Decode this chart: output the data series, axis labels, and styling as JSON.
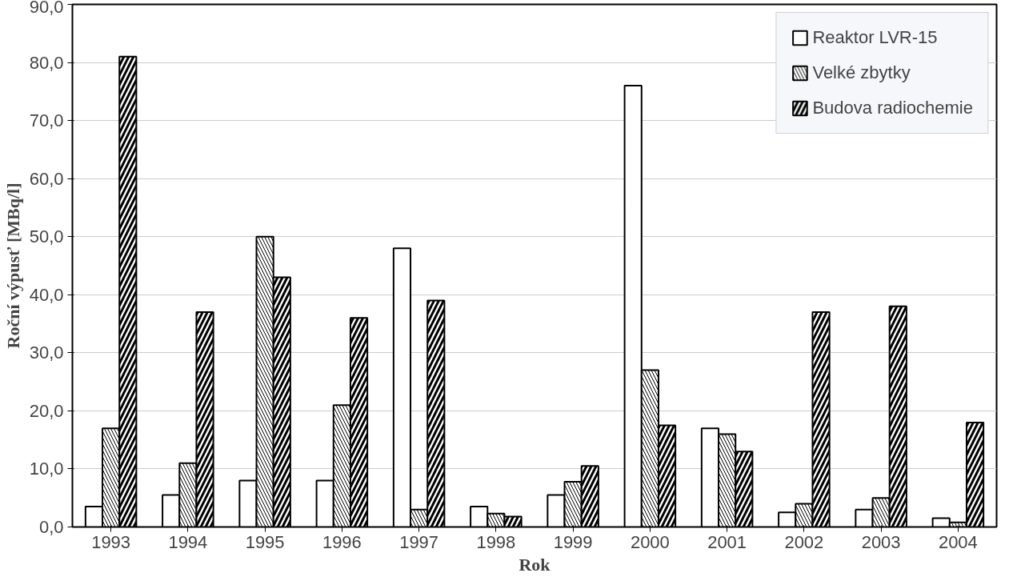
{
  "chart_data": {
    "type": "bar",
    "xlabel": "Rok",
    "ylabel": "Roční výpusť [MBq/l]",
    "categories": [
      "1993",
      "1994",
      "1995",
      "1996",
      "1997",
      "1998",
      "1999",
      "2000",
      "2001",
      "2002",
      "2003",
      "2004"
    ],
    "series": [
      {
        "name": "Reaktor LVR-15",
        "color": "#ffffff",
        "values": [
          3.5,
          5.5,
          8,
          8,
          48,
          3.5,
          5.5,
          76,
          17,
          2.5,
          3,
          1.5
        ]
      },
      {
        "name": "Velké zbytky",
        "color": "#ffffff",
        "values": [
          17,
          11,
          50,
          21,
          3,
          2.3,
          7.8,
          27,
          16,
          4,
          5,
          0.8
        ]
      },
      {
        "name": "Budova radiochemie",
        "color": "#ffffff",
        "values": [
          81,
          37,
          43,
          36,
          39,
          1.8,
          10.5,
          17.5,
          13,
          37,
          38,
          18
        ]
      }
    ],
    "ylim": [
      0,
      90
    ],
    "yticks": [
      {
        "value": 0,
        "label": "0,0"
      },
      {
        "value": 10,
        "label": "10,0"
      },
      {
        "value": 20,
        "label": "20,0"
      },
      {
        "value": 30,
        "label": "30,0"
      },
      {
        "value": 40,
        "label": "40,0"
      },
      {
        "value": 50,
        "label": "50,0"
      },
      {
        "value": 60,
        "label": "60,0"
      },
      {
        "value": 70,
        "label": "70,0"
      },
      {
        "value": 80,
        "label": "80,0"
      },
      {
        "value": 90,
        "label": "90,0"
      }
    ],
    "grid": "y",
    "legend": "top right"
  }
}
